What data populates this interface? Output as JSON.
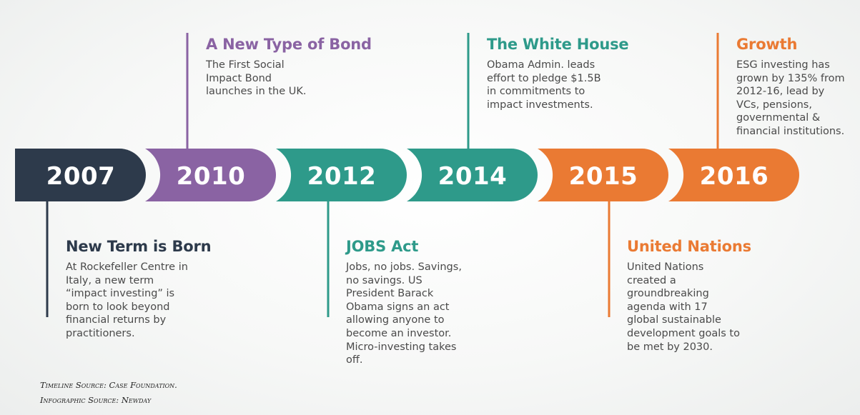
{
  "colors": {
    "navy": "#2d3a4b",
    "purple": "#8a63a3",
    "teal": "#2e9a8a",
    "orange": "#ea7a33"
  },
  "milestones": [
    {
      "year": "2007",
      "color": "navy",
      "side": "below",
      "title": "New Term is Born",
      "text": "At Rockefeller Centre in Italy, a new term “impact investing” is born to look beyond financial returns by practitioners."
    },
    {
      "year": "2010",
      "color": "purple",
      "side": "above",
      "title": "A New Type of Bond",
      "text": "The First Social Impact Bond launches in the UK."
    },
    {
      "year": "2012",
      "color": "teal",
      "side": "below",
      "title": "JOBS Act",
      "text": "Jobs, no jobs. Savings, no savings. US President Barack Obama signs an act allowing anyone to become an investor. Micro-investing takes off."
    },
    {
      "year": "2014",
      "color": "teal",
      "side": "above",
      "title": "The White House",
      "text": "Obama Admin. leads effort to pledge $1.5B in commitments to impact investments."
    },
    {
      "year": "2015",
      "color": "orange",
      "side": "below",
      "title": "United Nations",
      "text": "United Nations created a groundbreaking agenda with 17 global sustainable development goals to be met by 2030."
    },
    {
      "year": "2016",
      "color": "orange",
      "side": "above",
      "title": "Growth",
      "text": "ESG investing has grown by 135% from 2012-16, lead by VCs, pensions, governmental & financial institutions."
    }
  ],
  "sources": {
    "timeline": "Timeline Source: Case Foundation.",
    "infographic": "Infographic Source: Newday"
  }
}
